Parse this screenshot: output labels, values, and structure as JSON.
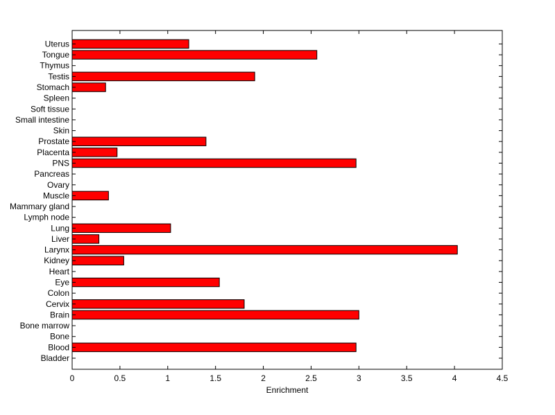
{
  "chart_data": {
    "type": "bar",
    "orientation": "horizontal",
    "title": "",
    "xlabel": "Enrichment",
    "ylabel": "",
    "xlim": [
      0,
      4.5
    ],
    "xticks": [
      "0",
      "0.5",
      "1",
      "1.5",
      "2",
      "2.5",
      "3",
      "3.5",
      "4",
      "4.5"
    ],
    "categories": [
      "Bladder",
      "Blood",
      "Bone",
      "Bone marrow",
      "Brain",
      "Cervix",
      "Colon",
      "Eye",
      "Heart",
      "Kidney",
      "Larynx",
      "Liver",
      "Lung",
      "Lymph node",
      "Mammary gland",
      "Muscle",
      "Ovary",
      "Pancreas",
      "PNS",
      "Placenta",
      "Prostate",
      "Skin",
      "Small intestine",
      "Soft tissue",
      "Spleen",
      "Stomach",
      "Testis",
      "Thymus",
      "Tongue",
      "Uterus"
    ],
    "values": [
      0,
      2.97,
      0,
      0,
      3.0,
      1.8,
      0,
      1.54,
      0,
      0.54,
      4.03,
      0.28,
      1.03,
      0,
      0,
      0.38,
      0,
      0,
      2.97,
      0.47,
      1.4,
      0,
      0,
      0,
      0,
      0.35,
      1.91,
      0,
      2.56,
      1.22
    ],
    "bar_color": "#ff0000",
    "legend": "none",
    "grid": false
  }
}
